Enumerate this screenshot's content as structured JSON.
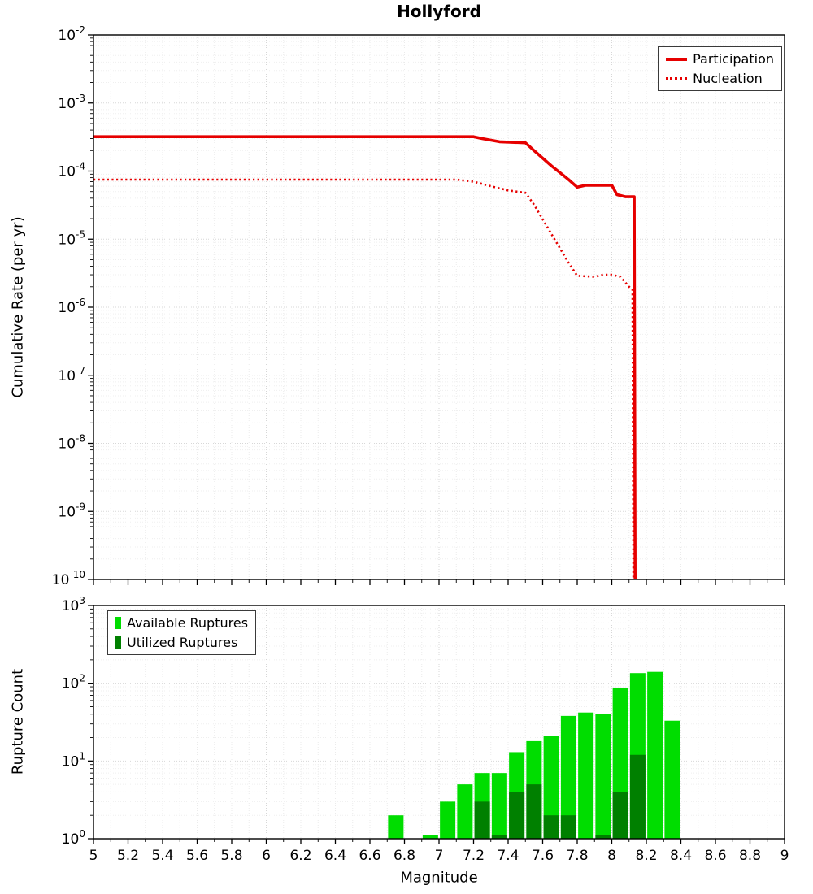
{
  "chart_data": [
    {
      "type": "line",
      "title": "Hollyford",
      "ylabel": "Cumulative Rate (per yr)",
      "xlim": [
        5,
        9
      ],
      "ylog": true,
      "ylim_exponents": [
        -10,
        -2
      ],
      "ytick_exponents": [
        -2,
        -3,
        -4,
        -5,
        -6,
        -7,
        -8,
        -9,
        -10
      ],
      "grid": true,
      "legend_position": "top-right",
      "series": [
        {
          "name": "Participation",
          "style": "solid",
          "color": "#e60000",
          "points": [
            [
              5.0,
              0.00032
            ],
            [
              7.2,
              0.00032
            ],
            [
              7.25,
              0.0003
            ],
            [
              7.35,
              0.00027
            ],
            [
              7.5,
              0.00026
            ],
            [
              7.55,
              0.0002
            ],
            [
              7.65,
              0.00012
            ],
            [
              7.75,
              7.5e-05
            ],
            [
              7.8,
              5.8e-05
            ],
            [
              7.85,
              6.2e-05
            ],
            [
              8.0,
              6.2e-05
            ],
            [
              8.03,
              4.5e-05
            ],
            [
              8.08,
              4.2e-05
            ],
            [
              8.13,
              4.2e-05
            ],
            [
              8.135,
              1e-10
            ]
          ]
        },
        {
          "name": "Nucleation",
          "style": "dotted",
          "color": "#e60000",
          "points": [
            [
              5.0,
              7.5e-05
            ],
            [
              7.1,
              7.5e-05
            ],
            [
              7.2,
              7e-05
            ],
            [
              7.3,
              6e-05
            ],
            [
              7.4,
              5.2e-05
            ],
            [
              7.5,
              4.8e-05
            ],
            [
              7.55,
              3.2e-05
            ],
            [
              7.65,
              1.2e-05
            ],
            [
              7.75,
              4.5e-06
            ],
            [
              7.8,
              2.9e-06
            ],
            [
              7.9,
              2.8e-06
            ],
            [
              7.95,
              3e-06
            ],
            [
              8.0,
              3e-06
            ],
            [
              8.05,
              2.8e-06
            ],
            [
              8.1,
              2e-06
            ],
            [
              8.12,
              1.8e-06
            ],
            [
              8.125,
              1e-10
            ]
          ]
        }
      ]
    },
    {
      "type": "bar",
      "ylabel": "Rupture Count",
      "xlabel": "Magnitude",
      "xlim": [
        5,
        9
      ],
      "ylog": true,
      "ylim_exponents": [
        0,
        3
      ],
      "ytick_exponents": [
        3,
        2,
        1,
        0
      ],
      "xtick_values": [
        5,
        5.2,
        5.4,
        5.6,
        5.8,
        6,
        6.2,
        6.4,
        6.6,
        6.8,
        7,
        7.2,
        7.4,
        7.6,
        7.8,
        8,
        8.2,
        8.4,
        8.6,
        8.8,
        9
      ],
      "xtick_labels": [
        "5",
        "5.2",
        "5.4",
        "5.6",
        "5.8",
        "6",
        "6.2",
        "6.4",
        "6.6",
        "6.8",
        "7",
        "7.2",
        "7.4",
        "7.6",
        "7.8",
        "8",
        "8.2",
        "8.4",
        "8.6",
        "8.8",
        "9"
      ],
      "bin_width": 0.1,
      "grid": true,
      "legend_position": "top-left",
      "series": [
        {
          "name": "Available Ruptures",
          "color": "#00dd00"
        },
        {
          "name": "Utilized Ruptures",
          "color": "#008000"
        }
      ],
      "bins": [
        {
          "magnitude": 6.75,
          "available": 2,
          "utilized": 0
        },
        {
          "magnitude": 6.95,
          "available": 1,
          "utilized": 0
        },
        {
          "magnitude": 7.05,
          "available": 3,
          "utilized": 0
        },
        {
          "magnitude": 7.15,
          "available": 5,
          "utilized": 0
        },
        {
          "magnitude": 7.25,
          "available": 7,
          "utilized": 3
        },
        {
          "magnitude": 7.35,
          "available": 7,
          "utilized": 1
        },
        {
          "magnitude": 7.45,
          "available": 13,
          "utilized": 4
        },
        {
          "magnitude": 7.55,
          "available": 18,
          "utilized": 5
        },
        {
          "magnitude": 7.65,
          "available": 21,
          "utilized": 2
        },
        {
          "magnitude": 7.75,
          "available": 38,
          "utilized": 2
        },
        {
          "magnitude": 7.85,
          "available": 42,
          "utilized": 0
        },
        {
          "magnitude": 7.95,
          "available": 40,
          "utilized": 1
        },
        {
          "magnitude": 8.05,
          "available": 88,
          "utilized": 4
        },
        {
          "magnitude": 8.15,
          "available": 135,
          "utilized": 12
        },
        {
          "magnitude": 8.25,
          "available": 140,
          "utilized": 0
        },
        {
          "magnitude": 8.35,
          "available": 33,
          "utilized": 0
        }
      ]
    }
  ]
}
